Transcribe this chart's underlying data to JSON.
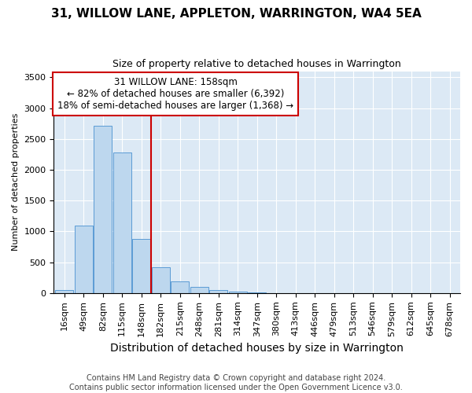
{
  "title": "31, WILLOW LANE, APPLETON, WARRINGTON, WA4 5EA",
  "subtitle": "Size of property relative to detached houses in Warrington",
  "xlabel": "Distribution of detached houses by size in Warrington",
  "ylabel": "Number of detached properties",
  "categories": [
    "16sqm",
    "49sqm",
    "82sqm",
    "115sqm",
    "148sqm",
    "182sqm",
    "215sqm",
    "248sqm",
    "281sqm",
    "314sqm",
    "347sqm",
    "380sqm",
    "413sqm",
    "446sqm",
    "479sqm",
    "513sqm",
    "546sqm",
    "579sqm",
    "612sqm",
    "645sqm",
    "678sqm"
  ],
  "values": [
    50,
    1100,
    2720,
    2280,
    880,
    420,
    190,
    95,
    50,
    25,
    5,
    0,
    0,
    0,
    0,
    0,
    0,
    0,
    0,
    0,
    0
  ],
  "bar_color": "#bdd7ee",
  "bar_edge_color": "#5b9bd5",
  "vline_x_index": 4.5,
  "annotation_text_line1": "31 WILLOW LANE: 158sqm",
  "annotation_text_line2": "← 82% of detached houses are smaller (6,392)",
  "annotation_text_line3": "18% of semi-detached houses are larger (1,368) →",
  "vline_color": "#cc0000",
  "annotation_box_edge_color": "#cc0000",
  "ylim": [
    0,
    3600
  ],
  "yticks": [
    0,
    500,
    1000,
    1500,
    2000,
    2500,
    3000,
    3500
  ],
  "background_color": "#dce9f5",
  "footer_line1": "Contains HM Land Registry data © Crown copyright and database right 2024.",
  "footer_line2": "Contains public sector information licensed under the Open Government Licence v3.0.",
  "title_fontsize": 11,
  "subtitle_fontsize": 9,
  "xlabel_fontsize": 10,
  "ylabel_fontsize": 8,
  "tick_fontsize": 8,
  "annotation_fontsize": 8.5,
  "footer_fontsize": 7
}
